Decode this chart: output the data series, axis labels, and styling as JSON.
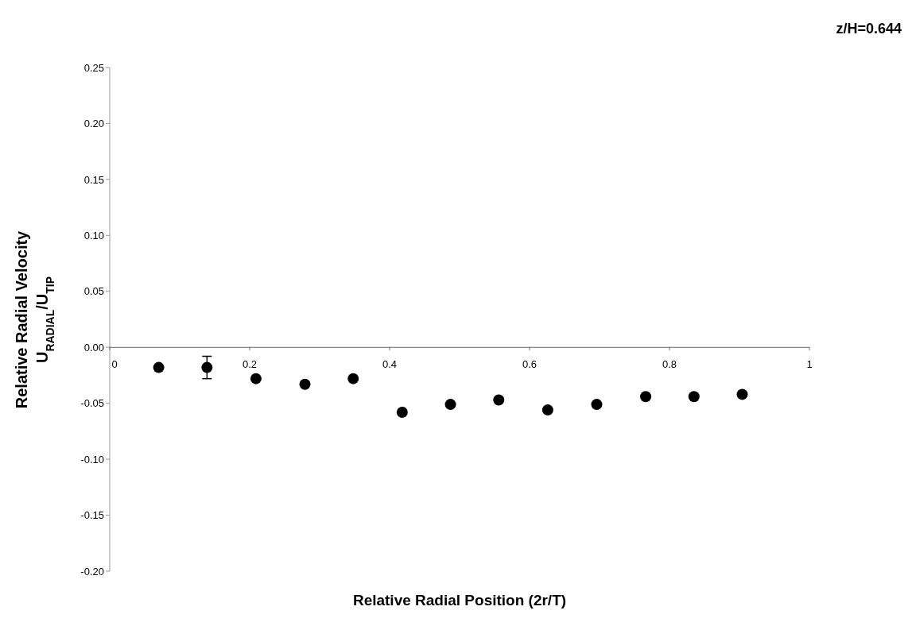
{
  "chart_data": {
    "type": "scatter",
    "title": "z/H=0.644",
    "xlabel": "Relative Radial Position (2r/T)",
    "ylabel": "Relative Radial Velocity\nU$_{RADIAL}$/U$_{TIP}$",
    "x": [
      0.07,
      0.139,
      0.209,
      0.279,
      0.348,
      0.418,
      0.487,
      0.556,
      0.626,
      0.696,
      0.766,
      0.835,
      0.904
    ],
    "series": [
      {
        "color": "#000000",
        "values": [
          -0.018,
          -0.018,
          -0.028,
          -0.033,
          -0.028,
          -0.058,
          -0.051,
          -0.047,
          -0.056,
          -0.051,
          -0.044,
          -0.044,
          -0.042
        ],
        "errors": [
          null,
          0.01,
          null,
          null,
          null,
          null,
          null,
          null,
          null,
          null,
          null,
          null,
          null
        ]
      }
    ],
    "xlim": [
      0,
      1
    ],
    "xticks": [
      0,
      0.2,
      0.4,
      0.6,
      0.8,
      1
    ],
    "ylim": [
      -0.2,
      0.25
    ],
    "yticks": [
      {
        "value": -0.2,
        "label": "-0.20"
      },
      {
        "value": -0.15,
        "label": "-0.15"
      },
      {
        "value": -0.1,
        "label": "-0.10"
      },
      {
        "value": -0.05,
        "label": "-0.05"
      },
      {
        "value": 0,
        "label": "0.00"
      },
      {
        "value": 0.05,
        "label": "0.05"
      },
      {
        "value": 0.1,
        "label": "0.10"
      },
      {
        "value": 0.15,
        "label": "0.15"
      },
      {
        "value": 0.2,
        "label": "0.20"
      },
      {
        "value": 0.25,
        "label": "0.25"
      }
    ],
    "grid": false,
    "legend": false,
    "marker": "circle"
  }
}
